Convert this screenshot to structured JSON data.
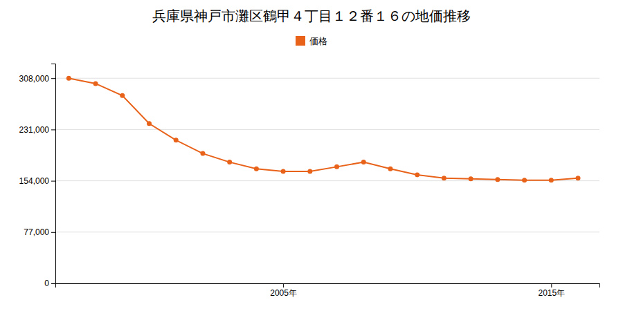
{
  "chart_data": {
    "type": "line",
    "title": "兵庫県神戸市灘区鶴甲４丁目１２番１６の地価推移",
    "x": [
      1997,
      1998,
      1999,
      2000,
      2001,
      2002,
      2003,
      2004,
      2005,
      2006,
      2007,
      2008,
      2009,
      2010,
      2011,
      2012,
      2013,
      2014,
      2015,
      2016
    ],
    "series": [
      {
        "name": "価格",
        "color": "#e8621a",
        "marker": "circle",
        "values": [
          308000,
          300000,
          282000,
          240000,
          215000,
          195000,
          182000,
          172000,
          168000,
          168000,
          175000,
          182000,
          172000,
          163000,
          158000,
          157000,
          156000,
          155000,
          155000,
          158000
        ]
      }
    ],
    "xlim": [
      1996.5,
      2016.8
    ],
    "xticks": [
      {
        "value": 2005,
        "label": "2005年"
      },
      {
        "value": 2015,
        "label": "2015年"
      }
    ],
    "ylim": [
      0,
      330000
    ],
    "yticks": [
      0,
      {
        "value": 77000,
        "label": "77,000"
      },
      {
        "value": 154000,
        "label": "154,000"
      },
      {
        "value": 231000,
        "label": "231,000"
      },
      {
        "value": 308000,
        "label": "308,000"
      }
    ],
    "grid": true,
    "legend": "top"
  }
}
